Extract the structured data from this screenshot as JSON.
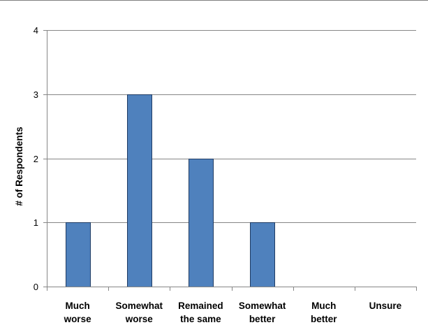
{
  "chart_data": {
    "type": "bar",
    "categories": [
      [
        "Much",
        "worse"
      ],
      [
        "Somewhat",
        "worse"
      ],
      [
        "Remained",
        "the same"
      ],
      [
        "Somewhat",
        "better"
      ],
      [
        "Much",
        "better"
      ],
      [
        "Unsure"
      ]
    ],
    "values": [
      1,
      3,
      2,
      1,
      0,
      0
    ],
    "title": "",
    "xlabel": "",
    "ylabel": "# of Respondents",
    "ylim": [
      0,
      4
    ],
    "yticks": [
      0,
      1,
      2,
      3,
      4
    ],
    "grid": true,
    "legend": "none",
    "colors": {
      "bar_fill": "#4f81bd",
      "bar_stroke": "#1f3b63",
      "grid": "#868686",
      "axis": "#868686",
      "frame": "#7f7f7f"
    }
  }
}
